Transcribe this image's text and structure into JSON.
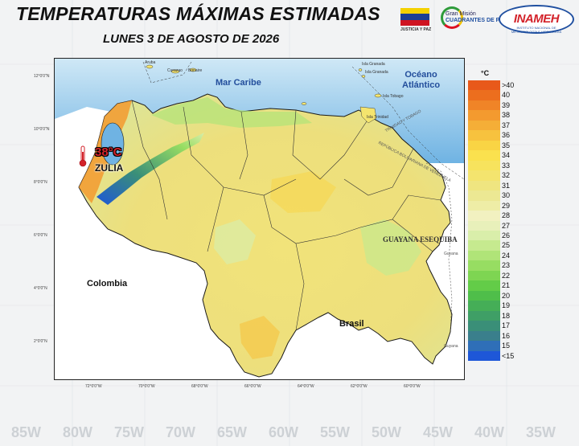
{
  "header": {
    "title": "TEMPERATURAS MÁXIMAS ESTIMADAS",
    "subtitle": "LUNES 3 DE AGOSTO  DE 2026"
  },
  "logos": {
    "flag_caption": "JUSTICIA Y PAZ",
    "gran_mision_line1": "Gran Misión",
    "gran_mision_line2": "CUADRANTES DE PAZ",
    "inameh": "INAMEH",
    "inameh_sub": "INSTITUTO NACIONAL DE METEOROLOGÍA E HIDROLOGÍA"
  },
  "map": {
    "seas": [
      "Mar Caribe",
      "Océano\nAtlántico"
    ],
    "countries": [
      "Colombia",
      "Brasil"
    ],
    "region": "GUAYANA ESEQUIBA",
    "islands": [
      "Aruba",
      "Curazao",
      "Bonaire",
      "Isla Granada",
      "Isla Granada",
      "Isla Tobago",
      "Isla Trinidad"
    ],
    "border_note": "TRINIDAD Y TOBAGO",
    "border_note2": "REPÚBLICA BOLIVARIANA DE VENEZUELA",
    "neighbor_small": [
      "Guyana",
      "Guyana"
    ],
    "highlight": {
      "value": "38°C",
      "state": "ZULIA"
    },
    "lat_labels": [
      "12°0'0\"N",
      "10°0'0\"N",
      "8°0'0\"N",
      "6°0'0\"N",
      "4°0'0\"N",
      "2°0'0\"N"
    ],
    "lon_labels": [
      "72°0'0\"W",
      "70°0'0\"W",
      "68°0'0\"W",
      "66°0'0\"W",
      "64°0'0\"W",
      "62°0'0\"W",
      "60°0'0\"W"
    ]
  },
  "legend": {
    "unit": "°C",
    "items": [
      {
        "label": ">40",
        "color": "#e8591a"
      },
      {
        "label": "40",
        "color": "#ec6e1e"
      },
      {
        "label": "39",
        "color": "#f08427"
      },
      {
        "label": "38",
        "color": "#f39a2f"
      },
      {
        "label": "37",
        "color": "#f5ae37"
      },
      {
        "label": "36",
        "color": "#f7c23e"
      },
      {
        "label": "35",
        "color": "#f9d444"
      },
      {
        "label": "34",
        "color": "#fae14e"
      },
      {
        "label": "33",
        "color": "#f7e35d"
      },
      {
        "label": "32",
        "color": "#f4e46e"
      },
      {
        "label": "31",
        "color": "#efe580"
      },
      {
        "label": "30",
        "color": "#ece893"
      },
      {
        "label": "29",
        "color": "#eeeda6"
      },
      {
        "label": "28",
        "color": "#f2f1c0"
      },
      {
        "label": "27",
        "color": "#e8f0ba"
      },
      {
        "label": "26",
        "color": "#d9eeaa"
      },
      {
        "label": "25",
        "color": "#c6ea8f"
      },
      {
        "label": "24",
        "color": "#b0e478"
      },
      {
        "label": "23",
        "color": "#97dd62"
      },
      {
        "label": "22",
        "color": "#7ed552"
      },
      {
        "label": "21",
        "color": "#63cc48"
      },
      {
        "label": "20",
        "color": "#4fbe4a"
      },
      {
        "label": "19",
        "color": "#45ae57"
      },
      {
        "label": "18",
        "color": "#3f9f66"
      },
      {
        "label": "17",
        "color": "#3a8f78"
      },
      {
        "label": "16",
        "color": "#3a7f8c"
      },
      {
        "label": "15",
        "color": "#2f6fb8"
      },
      {
        "label": "<15",
        "color": "#1e57d8"
      }
    ]
  },
  "background_axis": [
    "85W",
    "80W",
    "75W",
    "70W",
    "65W",
    "60W",
    "55W",
    "50W",
    "45W",
    "40W",
    "35W"
  ]
}
